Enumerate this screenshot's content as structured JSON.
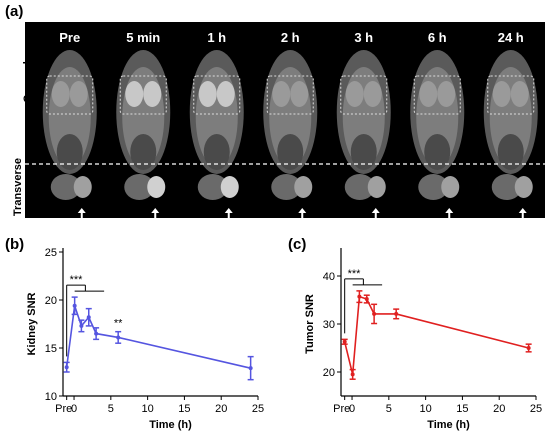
{
  "panel_a": {
    "letter": "(a)",
    "timepoints": [
      "Pre",
      "5 min",
      "1 h",
      "2 h",
      "3 h",
      "6 h",
      "24 h"
    ],
    "row_labels": [
      "Coronal",
      "Transverse"
    ]
  },
  "panel_b": {
    "letter": "(b)"
  },
  "panel_c": {
    "letter": "(c)"
  },
  "chart_data": [
    {
      "type": "line",
      "color": "#5555e0",
      "xlabel": "Time (h)",
      "ylabel": "Kidney SNR",
      "xlim": [
        -1.5,
        25
      ],
      "ylim": [
        10,
        25
      ],
      "xticks": [
        0,
        5,
        10,
        15,
        20,
        25
      ],
      "yticks": [
        10,
        15,
        20,
        25
      ],
      "pre_tick_label": "Pre",
      "x": [
        -1,
        0.083,
        1,
        2,
        3,
        6,
        24
      ],
      "values": [
        13.0,
        19.4,
        17.3,
        18.2,
        16.5,
        16.1,
        12.9
      ],
      "errors": [
        0.5,
        0.9,
        0.6,
        0.9,
        0.6,
        0.6,
        1.2
      ],
      "significance": [
        {
          "label": "***",
          "from_x": -1,
          "to_x": [
            0.083,
            1,
            2,
            3
          ]
        },
        {
          "label": "**",
          "at_x": 6
        }
      ]
    },
    {
      "type": "line",
      "color": "#e02020",
      "xlabel": "Time (h)",
      "ylabel": "Tumor SNR",
      "xlim": [
        -1.5,
        25
      ],
      "ylim": [
        15,
        45
      ],
      "xticks": [
        0,
        5,
        10,
        15,
        20,
        25
      ],
      "yticks": [
        20,
        30,
        40
      ],
      "pre_tick_label": "Pre",
      "x": [
        -1,
        0.083,
        1,
        2,
        3,
        6,
        24
      ],
      "values": [
        26.3,
        19.5,
        35.7,
        35.2,
        32.1,
        32.1,
        25.0
      ],
      "errors": [
        0.5,
        1.0,
        1.2,
        0.8,
        2.0,
        1.0,
        0.8
      ],
      "significance": [
        {
          "label": "***",
          "from_x": -1,
          "to_x": [
            0.083,
            1,
            2,
            3
          ]
        }
      ]
    }
  ]
}
